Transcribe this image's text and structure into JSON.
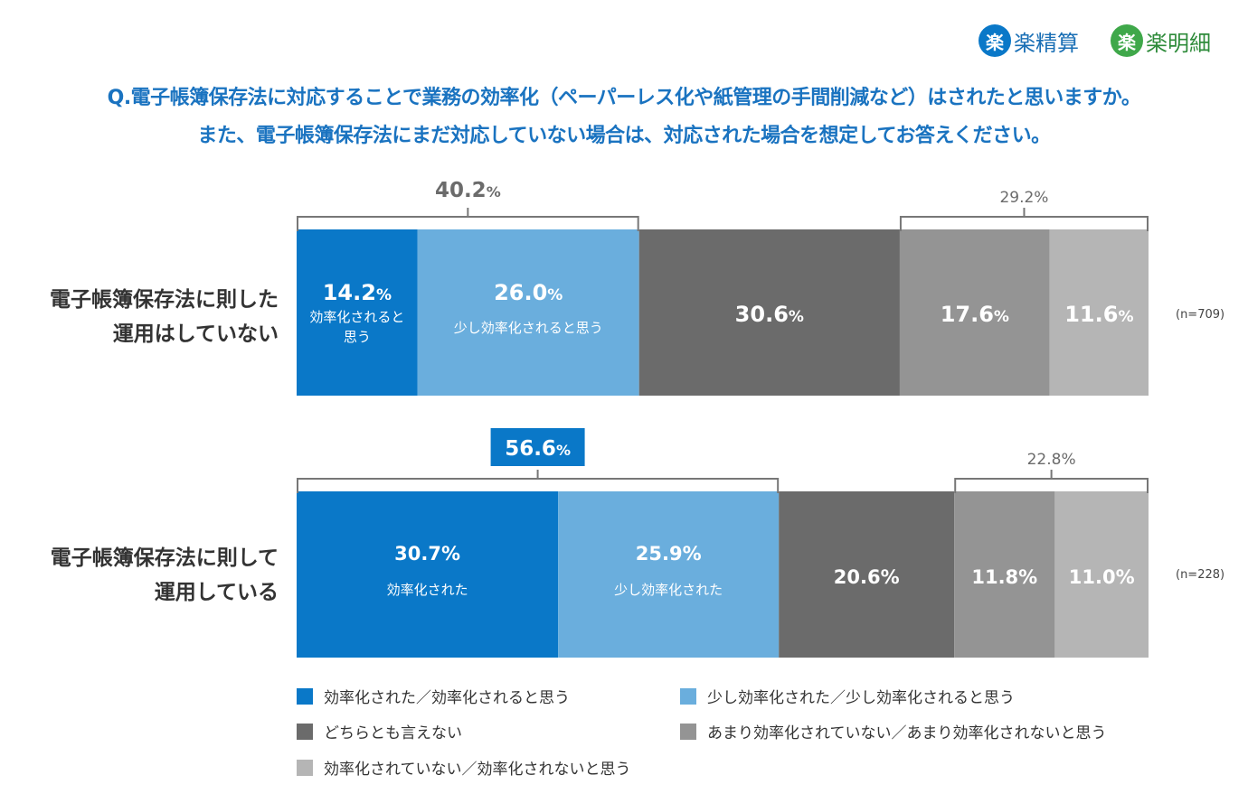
{
  "logos": [
    {
      "badge": "楽",
      "text": "楽精算",
      "color": "#0a78c8"
    },
    {
      "badge": "楽",
      "text": "楽明細",
      "color": "#3fa84a"
    }
  ],
  "question_line1": "Q.電子帳簿保存法に対応することで業務の効率化（ペーパーレス化や紙管理の手間削減など）はされたと思いますか。",
  "question_line2": "また、電子帳簿保存法にまだ対応していない場合は、対応された場合を想定してお答えください。",
  "chart_data": {
    "type": "bar",
    "orientation": "horizontal-stacked-100",
    "series_colors": [
      "#0a78c8",
      "#6aaedd",
      "#6b6b6b",
      "#949494",
      "#b5b5b5"
    ],
    "legend": [
      "効率化された／効率化されると思う",
      "少し効率化された／少し効率化されると思う",
      "どちらとも言えない",
      "あまり効率化されていない／あまり効率化されないと思う",
      "効率化されていない／効率化されないと思う"
    ],
    "rows": [
      {
        "label_line1": "電子帳簿保存法に則した",
        "label_line2": "運用はしていない",
        "n": "(n=709)",
        "values": [
          14.2,
          26.0,
          30.6,
          17.6,
          11.6
        ],
        "value_labels": [
          "14.2",
          "26.0",
          "30.6",
          "17.6",
          "11.6"
        ],
        "segment_subs": [
          "効率化されると思う",
          "少し効率化されると思う",
          "",
          "",
          ""
        ],
        "positive_total": "40.2",
        "negative_total": "29.2"
      },
      {
        "label_line1": "電子帳簿保存法に則して",
        "label_line2": "運用している",
        "n": "(n=228)",
        "values": [
          30.7,
          25.9,
          20.6,
          11.8,
          11.0
        ],
        "value_labels": [
          "30.7%",
          "25.9%",
          "20.6%",
          "11.8%",
          "11.0%"
        ],
        "segment_subs": [
          "効率化された",
          "少し効率化された",
          "",
          "",
          ""
        ],
        "positive_total": "56.6",
        "negative_total": "22.8%"
      }
    ],
    "percent_sign": "%"
  }
}
